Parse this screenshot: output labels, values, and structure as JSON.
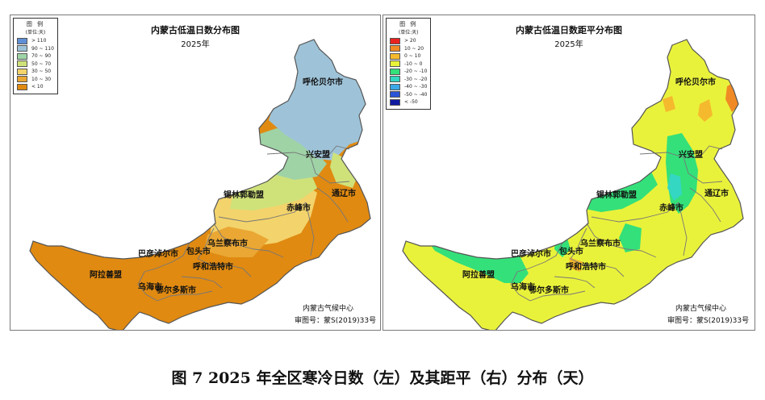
{
  "left_map": {
    "title": "内蒙古低温日数分布图",
    "year": "2025年",
    "legend": {
      "title": "图 例",
      "unit": "(单位:天)",
      "items": [
        {
          "label": "> 110",
          "color": "#5f8fd6"
        },
        {
          "label": "90 ~ 110",
          "color": "#9ec3d8"
        },
        {
          "label": "70 ~ 90",
          "color": "#9fd3a6"
        },
        {
          "label": "50 ~ 70",
          "color": "#cfe27a"
        },
        {
          "label": "30 ~ 50",
          "color": "#f3d36b"
        },
        {
          "label": "10 ~ 30",
          "color": "#eaa733"
        },
        {
          "label": "< 10",
          "color": "#e08a12"
        }
      ]
    },
    "credit_org": "内蒙古气候中心",
    "credit_no": "审图号：蒙S(2019)33号"
  },
  "right_map": {
    "title": "内蒙古低温日数距平分布图",
    "year": "2025年",
    "legend": {
      "title": "图 例",
      "unit": "(单位:天)",
      "items": [
        {
          "label": "> 20",
          "color": "#e8231f"
        },
        {
          "label": "10 ~ 20",
          "color": "#f08a25"
        },
        {
          "label": "0 ~ 10",
          "color": "#f5b92e"
        },
        {
          "label": "-10 ~ 0",
          "color": "#e9f23a"
        },
        {
          "label": "-20 ~ -10",
          "color": "#34e07a"
        },
        {
          "label": "-30 ~ -20",
          "color": "#33d7c2"
        },
        {
          "label": "-40 ~ -30",
          "color": "#3aa7e6"
        },
        {
          "label": "-50 ~ -40",
          "color": "#2a55d6"
        },
        {
          "label": "< -50",
          "color": "#101aa0"
        }
      ]
    },
    "credit_org": "内蒙古气候中心",
    "credit_no": "审图号：蒙S(2019)33号"
  },
  "region_labels": {
    "hulunbuir": "呼伦贝尔市",
    "xinganmeng": "兴安盟",
    "tongliao": "通辽市",
    "xilingol": "锡林郭勒盟",
    "chifeng": "赤峰市",
    "ulanqab": "乌兰察布市",
    "baotou": "包头市",
    "bayannur": "巴彦淖尔市",
    "hohhot": "呼和浩特市",
    "alxa": "阿拉善盟",
    "wuhai": "乌海市",
    "ordos": "鄂尔多斯市"
  },
  "caption": "图 7  2025 年全区寒冷日数（左）及其距平（右）分布（天）"
}
